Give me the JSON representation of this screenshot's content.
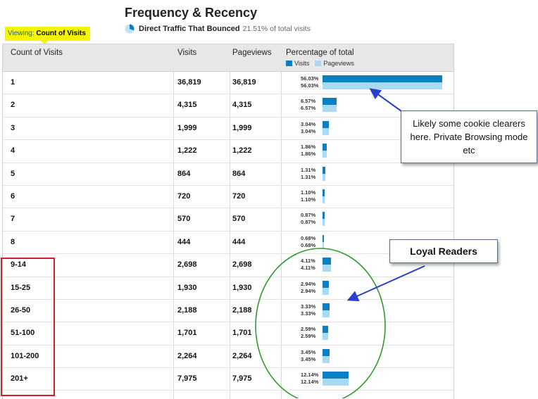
{
  "report": {
    "title": "Frequency & Recency",
    "viewing_label": "Viewing:",
    "viewing_value": "Count of Visits",
    "segment_name": "Direct Traffic That Bounced",
    "segment_share": "21.51% of total visits"
  },
  "table": {
    "headers": {
      "dimension": "Count of Visits",
      "visits": "Visits",
      "pageviews": "Pageviews",
      "percentage": "Percentage of total"
    },
    "legend": {
      "visits": "Visits",
      "pageviews": "Pageviews"
    },
    "colors": {
      "visits": "#0a7fc2",
      "pageviews": "#a9daf2"
    },
    "rows": [
      {
        "label": "1",
        "visits": "36,819",
        "pageviews": "36,819",
        "pct_visits": "56.03%",
        "pct_pageviews": "56.03%",
        "share": 56.03
      },
      {
        "label": "2",
        "visits": "4,315",
        "pageviews": "4,315",
        "pct_visits": "6.57%",
        "pct_pageviews": "6.57%",
        "share": 6.57
      },
      {
        "label": "3",
        "visits": "1,999",
        "pageviews": "1,999",
        "pct_visits": "3.04%",
        "pct_pageviews": "3.04%",
        "share": 3.04
      },
      {
        "label": "4",
        "visits": "1,222",
        "pageviews": "1,222",
        "pct_visits": "1.86%",
        "pct_pageviews": "1.86%",
        "share": 1.86
      },
      {
        "label": "5",
        "visits": "864",
        "pageviews": "864",
        "pct_visits": "1.31%",
        "pct_pageviews": "1.31%",
        "share": 1.31
      },
      {
        "label": "6",
        "visits": "720",
        "pageviews": "720",
        "pct_visits": "1.10%",
        "pct_pageviews": "1.10%",
        "share": 1.1
      },
      {
        "label": "7",
        "visits": "570",
        "pageviews": "570",
        "pct_visits": "0.87%",
        "pct_pageviews": "0.87%",
        "share": 0.87
      },
      {
        "label": "8",
        "visits": "444",
        "pageviews": "444",
        "pct_visits": "0.68%",
        "pct_pageviews": "0.68%",
        "share": 0.68
      },
      {
        "label": "9-14",
        "visits": "2,698",
        "pageviews": "2,698",
        "pct_visits": "4.11%",
        "pct_pageviews": "4.11%",
        "share": 4.11
      },
      {
        "label": "15-25",
        "visits": "1,930",
        "pageviews": "1,930",
        "pct_visits": "2.94%",
        "pct_pageviews": "2.94%",
        "share": 2.94
      },
      {
        "label": "26-50",
        "visits": "2,188",
        "pageviews": "2,188",
        "pct_visits": "3.33%",
        "pct_pageviews": "3.33%",
        "share": 3.33
      },
      {
        "label": "51-100",
        "visits": "1,701",
        "pageviews": "1,701",
        "pct_visits": "2.59%",
        "pct_pageviews": "2.59%",
        "share": 2.59
      },
      {
        "label": "101-200",
        "visits": "2,264",
        "pageviews": "2,264",
        "pct_visits": "3.45%",
        "pct_pageviews": "3.45%",
        "share": 3.45
      },
      {
        "label": "201+",
        "visits": "7,975",
        "pageviews": "7,975",
        "pct_visits": "12.14%",
        "pct_pageviews": "12.14%",
        "share": 12.14
      }
    ]
  },
  "annotations": {
    "cookie_note": "Likely some cookie clearers here. Private Browsing mode etc",
    "loyal_note": "Loyal Readers",
    "colors": {
      "arrow": "#2a3fd0",
      "circle": "#2f9a2f",
      "box": "#cc2222"
    }
  }
}
